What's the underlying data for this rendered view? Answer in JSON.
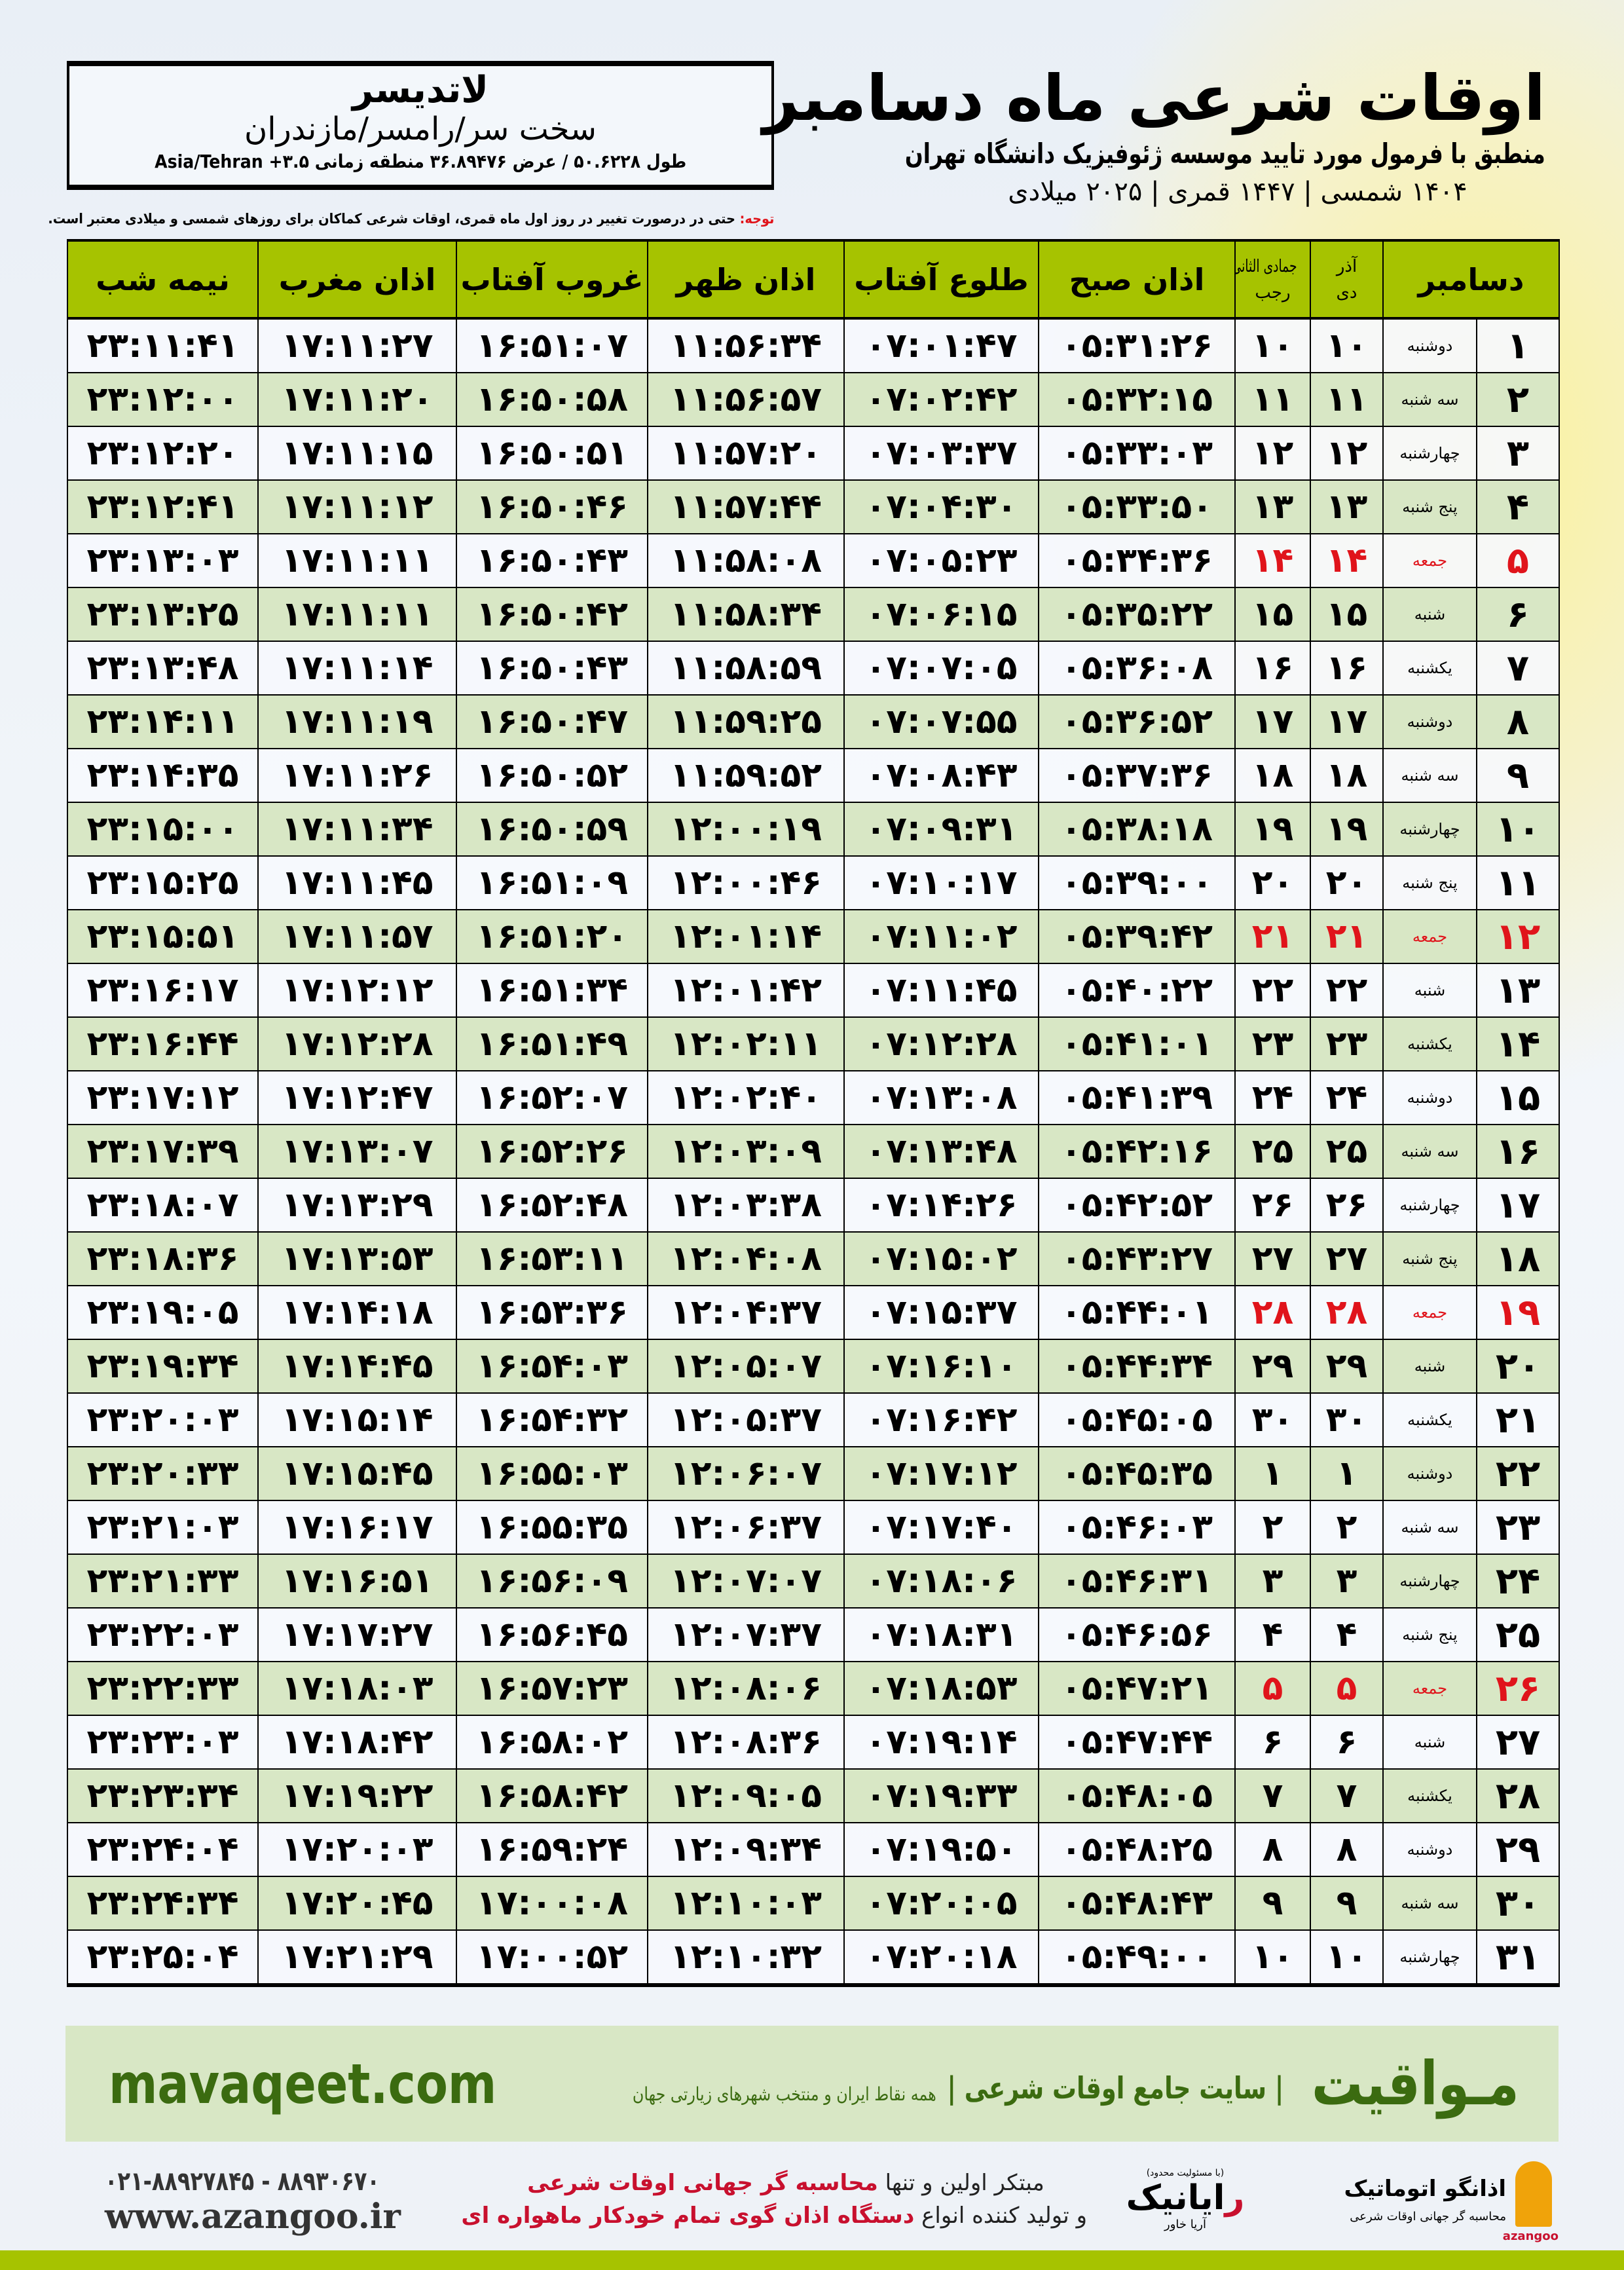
{
  "header": {
    "title": "اوقات شرعی ماه دسامبر",
    "subtitle": "منطبق با فرمول مورد تایید موسسه ژئوفیزیک دانشگاه تهران",
    "years": "۱۴۰۴ شمسی | ۱۴۴۷ قمری | ۲۰۲۵ میلادی"
  },
  "location": {
    "city": "لاتدیسر",
    "region": "سخت سر/رامسر/مازندران",
    "coords": "طول ۵۰.۶۲۲۸ / عرض ۳۶.۸۹۴۷۶ منطقه زمانی ۳.۵+ Asia/Tehran"
  },
  "note": {
    "label": "توجه:",
    "text": " حتی در درصورت تغییر در روز اول ماه قمری، اوقات شرعی کماکان برای روزهای شمسی و میلادی معتبر است."
  },
  "table": {
    "headers": {
      "month": "دسامبر",
      "solar_top": "آذر",
      "solar_bottom": "دی",
      "lunar_top": "جمادی الثانی",
      "lunar_bottom": "رجب",
      "fajr": "اذان صبح",
      "sunrise": "طلوع آفتاب",
      "dhuhr": "اذان ظهر",
      "sunset": "غروب آفتاب",
      "maghrib": "اذان مغرب",
      "midnight": "نیمه شب"
    },
    "friday_color": "#e0141b",
    "header_color": "#a6c300",
    "rows": [
      [
        "۱",
        "دوشنبه",
        "۱۰",
        "۱۰",
        "۰۵:۳۱:۲۶",
        "۰۷:۰۱:۴۷",
        "۱۱:۵۶:۳۴",
        "۱۶:۵۱:۰۷",
        "۱۷:۱۱:۲۷",
        "۲۳:۱۱:۴۱"
      ],
      [
        "۲",
        "سه شنبه",
        "۱۱",
        "۱۱",
        "۰۵:۳۲:۱۵",
        "۰۷:۰۲:۴۲",
        "۱۱:۵۶:۵۷",
        "۱۶:۵۰:۵۸",
        "۱۷:۱۱:۲۰",
        "۲۳:۱۲:۰۰"
      ],
      [
        "۳",
        "چهارشنبه",
        "۱۲",
        "۱۲",
        "۰۵:۳۳:۰۳",
        "۰۷:۰۳:۳۷",
        "۱۱:۵۷:۲۰",
        "۱۶:۵۰:۵۱",
        "۱۷:۱۱:۱۵",
        "۲۳:۱۲:۲۰"
      ],
      [
        "۴",
        "پنج شنبه",
        "۱۳",
        "۱۳",
        "۰۵:۳۳:۵۰",
        "۰۷:۰۴:۳۰",
        "۱۱:۵۷:۴۴",
        "۱۶:۵۰:۴۶",
        "۱۷:۱۱:۱۲",
        "۲۳:۱۲:۴۱"
      ],
      [
        "۵",
        "جمعه",
        "۱۴",
        "۱۴",
        "۰۵:۳۴:۳۶",
        "۰۷:۰۵:۲۳",
        "۱۱:۵۸:۰۸",
        "۱۶:۵۰:۴۳",
        "۱۷:۱۱:۱۱",
        "۲۳:۱۳:۰۳"
      ],
      [
        "۶",
        "شنبه",
        "۱۵",
        "۱۵",
        "۰۵:۳۵:۲۲",
        "۰۷:۰۶:۱۵",
        "۱۱:۵۸:۳۴",
        "۱۶:۵۰:۴۲",
        "۱۷:۱۱:۱۱",
        "۲۳:۱۳:۲۵"
      ],
      [
        "۷",
        "یکشنبه",
        "۱۶",
        "۱۶",
        "۰۵:۳۶:۰۸",
        "۰۷:۰۷:۰۵",
        "۱۱:۵۸:۵۹",
        "۱۶:۵۰:۴۳",
        "۱۷:۱۱:۱۴",
        "۲۳:۱۳:۴۸"
      ],
      [
        "۸",
        "دوشنبه",
        "۱۷",
        "۱۷",
        "۰۵:۳۶:۵۲",
        "۰۷:۰۷:۵۵",
        "۱۱:۵۹:۲۵",
        "۱۶:۵۰:۴۷",
        "۱۷:۱۱:۱۹",
        "۲۳:۱۴:۱۱"
      ],
      [
        "۹",
        "سه شنبه",
        "۱۸",
        "۱۸",
        "۰۵:۳۷:۳۶",
        "۰۷:۰۸:۴۳",
        "۱۱:۵۹:۵۲",
        "۱۶:۵۰:۵۲",
        "۱۷:۱۱:۲۶",
        "۲۳:۱۴:۳۵"
      ],
      [
        "۱۰",
        "چهارشنبه",
        "۱۹",
        "۱۹",
        "۰۵:۳۸:۱۸",
        "۰۷:۰۹:۳۱",
        "۱۲:۰۰:۱۹",
        "۱۶:۵۰:۵۹",
        "۱۷:۱۱:۳۴",
        "۲۳:۱۵:۰۰"
      ],
      [
        "۱۱",
        "پنج شنبه",
        "۲۰",
        "۲۰",
        "۰۵:۳۹:۰۰",
        "۰۷:۱۰:۱۷",
        "۱۲:۰۰:۴۶",
        "۱۶:۵۱:۰۹",
        "۱۷:۱۱:۴۵",
        "۲۳:۱۵:۲۵"
      ],
      [
        "۱۲",
        "جمعه",
        "۲۱",
        "۲۱",
        "۰۵:۳۹:۴۲",
        "۰۷:۱۱:۰۲",
        "۱۲:۰۱:۱۴",
        "۱۶:۵۱:۲۰",
        "۱۷:۱۱:۵۷",
        "۲۳:۱۵:۵۱"
      ],
      [
        "۱۳",
        "شنبه",
        "۲۲",
        "۲۲",
        "۰۵:۴۰:۲۲",
        "۰۷:۱۱:۴۵",
        "۱۲:۰۱:۴۲",
        "۱۶:۵۱:۳۴",
        "۱۷:۱۲:۱۲",
        "۲۳:۱۶:۱۷"
      ],
      [
        "۱۴",
        "یکشنبه",
        "۲۳",
        "۲۳",
        "۰۵:۴۱:۰۱",
        "۰۷:۱۲:۲۸",
        "۱۲:۰۲:۱۱",
        "۱۶:۵۱:۴۹",
        "۱۷:۱۲:۲۸",
        "۲۳:۱۶:۴۴"
      ],
      [
        "۱۵",
        "دوشنبه",
        "۲۴",
        "۲۴",
        "۰۵:۴۱:۳۹",
        "۰۷:۱۳:۰۸",
        "۱۲:۰۲:۴۰",
        "۱۶:۵۲:۰۷",
        "۱۷:۱۲:۴۷",
        "۲۳:۱۷:۱۲"
      ],
      [
        "۱۶",
        "سه شنبه",
        "۲۵",
        "۲۵",
        "۰۵:۴۲:۱۶",
        "۰۷:۱۳:۴۸",
        "۱۲:۰۳:۰۹",
        "۱۶:۵۲:۲۶",
        "۱۷:۱۳:۰۷",
        "۲۳:۱۷:۳۹"
      ],
      [
        "۱۷",
        "چهارشنبه",
        "۲۶",
        "۲۶",
        "۰۵:۴۲:۵۲",
        "۰۷:۱۴:۲۶",
        "۱۲:۰۳:۳۸",
        "۱۶:۵۲:۴۸",
        "۱۷:۱۳:۲۹",
        "۲۳:۱۸:۰۷"
      ],
      [
        "۱۸",
        "پنج شنبه",
        "۲۷",
        "۲۷",
        "۰۵:۴۳:۲۷",
        "۰۷:۱۵:۰۲",
        "۱۲:۰۴:۰۸",
        "۱۶:۵۳:۱۱",
        "۱۷:۱۳:۵۳",
        "۲۳:۱۸:۳۶"
      ],
      [
        "۱۹",
        "جمعه",
        "۲۸",
        "۲۸",
        "۰۵:۴۴:۰۱",
        "۰۷:۱۵:۳۷",
        "۱۲:۰۴:۳۷",
        "۱۶:۵۳:۳۶",
        "۱۷:۱۴:۱۸",
        "۲۳:۱۹:۰۵"
      ],
      [
        "۲۰",
        "شنبه",
        "۲۹",
        "۲۹",
        "۰۵:۴۴:۳۴",
        "۰۷:۱۶:۱۰",
        "۱۲:۰۵:۰۷",
        "۱۶:۵۴:۰۳",
        "۱۷:۱۴:۴۵",
        "۲۳:۱۹:۳۴"
      ],
      [
        "۲۱",
        "یکشنبه",
        "۳۰",
        "۳۰",
        "۰۵:۴۵:۰۵",
        "۰۷:۱۶:۴۲",
        "۱۲:۰۵:۳۷",
        "۱۶:۵۴:۳۲",
        "۱۷:۱۵:۱۴",
        "۲۳:۲۰:۰۳"
      ],
      [
        "۲۲",
        "دوشنبه",
        "۱",
        "۱",
        "۰۵:۴۵:۳۵",
        "۰۷:۱۷:۱۲",
        "۱۲:۰۶:۰۷",
        "۱۶:۵۵:۰۳",
        "۱۷:۱۵:۴۵",
        "۲۳:۲۰:۳۳"
      ],
      [
        "۲۳",
        "سه شنبه",
        "۲",
        "۲",
        "۰۵:۴۶:۰۳",
        "۰۷:۱۷:۴۰",
        "۱۲:۰۶:۳۷",
        "۱۶:۵۵:۳۵",
        "۱۷:۱۶:۱۷",
        "۲۳:۲۱:۰۳"
      ],
      [
        "۲۴",
        "چهارشنبه",
        "۳",
        "۳",
        "۰۵:۴۶:۳۱",
        "۰۷:۱۸:۰۶",
        "۱۲:۰۷:۰۷",
        "۱۶:۵۶:۰۹",
        "۱۷:۱۶:۵۱",
        "۲۳:۲۱:۳۳"
      ],
      [
        "۲۵",
        "پنج شنبه",
        "۴",
        "۴",
        "۰۵:۴۶:۵۶",
        "۰۷:۱۸:۳۱",
        "۱۲:۰۷:۳۷",
        "۱۶:۵۶:۴۵",
        "۱۷:۱۷:۲۷",
        "۲۳:۲۲:۰۳"
      ],
      [
        "۲۶",
        "جمعه",
        "۵",
        "۵",
        "۰۵:۴۷:۲۱",
        "۰۷:۱۸:۵۳",
        "۱۲:۰۸:۰۶",
        "۱۶:۵۷:۲۳",
        "۱۷:۱۸:۰۳",
        "۲۳:۲۲:۳۳"
      ],
      [
        "۲۷",
        "شنبه",
        "۶",
        "۶",
        "۰۵:۴۷:۴۴",
        "۰۷:۱۹:۱۴",
        "۱۲:۰۸:۳۶",
        "۱۶:۵۸:۰۲",
        "۱۷:۱۸:۴۲",
        "۲۳:۲۳:۰۳"
      ],
      [
        "۲۸",
        "یکشنبه",
        "۷",
        "۷",
        "۰۵:۴۸:۰۵",
        "۰۷:۱۹:۳۳",
        "۱۲:۰۹:۰۵",
        "۱۶:۵۸:۴۲",
        "۱۷:۱۹:۲۲",
        "۲۳:۲۳:۳۴"
      ],
      [
        "۲۹",
        "دوشنبه",
        "۸",
        "۸",
        "۰۵:۴۸:۲۵",
        "۰۷:۱۹:۵۰",
        "۱۲:۰۹:۳۴",
        "۱۶:۵۹:۲۴",
        "۱۷:۲۰:۰۳",
        "۲۳:۲۴:۰۴"
      ],
      [
        "۳۰",
        "سه شنبه",
        "۹",
        "۹",
        "۰۵:۴۸:۴۳",
        "۰۷:۲۰:۰۵",
        "۱۲:۱۰:۰۳",
        "۱۷:۰۰:۰۸",
        "۱۷:۲۰:۴۵",
        "۲۳:۲۴:۳۴"
      ],
      [
        "۳۱",
        "چهارشنبه",
        "۱۰",
        "۱۰",
        "۰۵:۴۹:۰۰",
        "۰۷:۲۰:۱۸",
        "۱۲:۱۰:۳۲",
        "۱۷:۰۰:۵۲",
        "۱۷:۲۱:۲۹",
        "۲۳:۲۵:۰۴"
      ]
    ]
  },
  "banner": {
    "brand": "مـواقیت",
    "slogan": "| سایت جامع اوقات شرعی |",
    "sub": "همه نقاط ایران و منتخب شهرهای زیارتی جهان",
    "site": "mavaqeet.com",
    "brand_color": "#3b6b10"
  },
  "footer": {
    "phone": "۰۲۱-۸۸۹۲۷۸۴۵ - ۸۸۹۳۰۶۷۰",
    "web": "www.azangoo.ir",
    "promo_line1_a": "مبتکر اولین و تنها ",
    "promo_line1_b": "محاسبه گر جهانی اوقات شرعی",
    "promo_line2_a": "و تولید کننده انواع ",
    "promo_line2_b": "دستگاه اذان گوی تمام خودکار ماهواره ای",
    "logo1_small": "(با مسئولیت محدود)",
    "logo1_name_red": "ر",
    "logo1_name": "ایانیک",
    "logo1_sub": "آریا خاور",
    "logo2_name": "اذانگو اتوماتیک",
    "logo2_sub": "محاسبه گر جهانی اوقات شرعی",
    "logo2_en": "azangoo"
  }
}
